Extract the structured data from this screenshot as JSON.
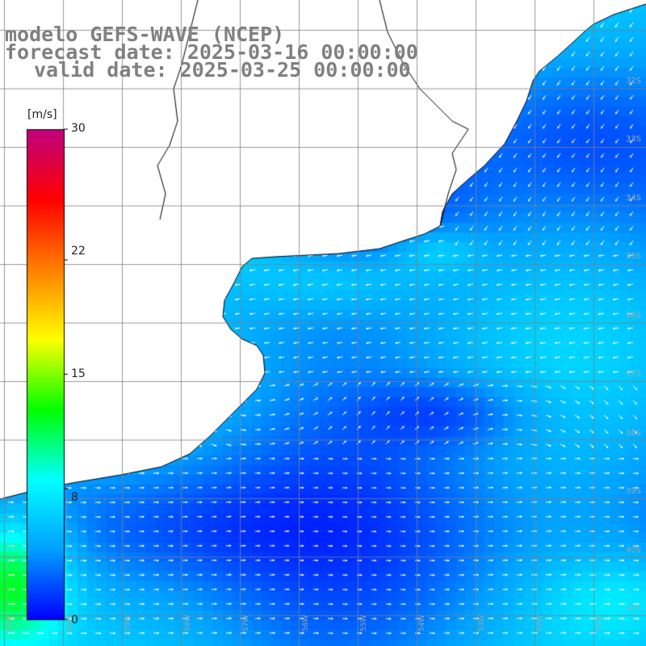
{
  "title": {
    "line1": "modelo GEFS-WAVE (NCEP)",
    "line2": "forecast date: 2025-03-16 00:00:00",
    "line3": "valid date: 2025-03-25 00:00:00"
  },
  "colorbar": {
    "unit": "[m/s]",
    "ticks": [
      "30",
      "22",
      "15",
      "8",
      "0"
    ],
    "tick_values": [
      30,
      22,
      15,
      8,
      0
    ],
    "range": [
      0,
      30
    ],
    "colors": [
      "#0000ff",
      "#00a0ff",
      "#00ffff",
      "#00ff00",
      "#ffff00",
      "#ff8000",
      "#ff0000",
      "#c0007f"
    ]
  },
  "map": {
    "parameter": "wind speed and direction",
    "lat_labels": [
      "32S",
      "33S",
      "34S",
      "35S",
      "36S",
      "37S",
      "38S",
      "39S",
      "40S",
      "41S"
    ],
    "lon_labels": [
      "61W",
      "60W",
      "59W",
      "58W",
      "57W",
      "56W",
      "55W",
      "54W",
      "53W",
      "52W",
      "51W"
    ],
    "land_color": "#ffffff",
    "grid_color": "#808080",
    "coast_color": "#000000",
    "arrow_color": "#ffffff"
  }
}
